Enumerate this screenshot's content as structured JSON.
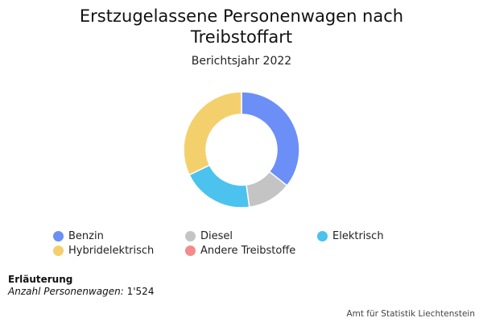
{
  "chart_data": {
    "type": "pie",
    "title": "Erstzugelassene Personenwagen nach Treibstoffart",
    "subtitle": "Berichtsjahr 2022",
    "donut": true,
    "categories": [
      "Benzin",
      "Diesel",
      "Elektrisch",
      "Hybridelektrisch",
      "Andere Treibstoffe"
    ],
    "values": [
      543,
      186,
      305,
      490,
      0
    ],
    "colors": [
      "#6b8ff7",
      "#c4c4c4",
      "#4cc2ee",
      "#f4d06d",
      "#f48b8b"
    ],
    "legend_position": "bottom"
  },
  "note": {
    "title": "Erläuterung",
    "label": "Anzahl Personenwagen:",
    "value": "1'524"
  },
  "credit": "Amt für Statistik Liechtenstein"
}
